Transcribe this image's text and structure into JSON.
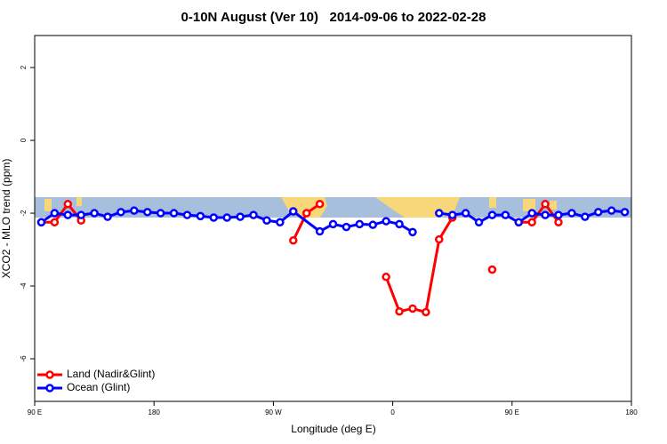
{
  "chart_data": {
    "type": "line",
    "title": "0-10N August (Ver 10)   2014-09-06 to 2022-02-28",
    "x_label": "Longitude (deg E)",
    "y_label": "XCO2 - MLO trend (ppm)",
    "xlim": [
      90,
      540
    ],
    "ylim": [
      -7.17,
      2.88
    ],
    "xticks": [
      {
        "value": 90,
        "label": "90 E"
      },
      180,
      {
        "value": 270,
        "label": "90 W"
      },
      {
        "value": 360,
        "label": "0"
      },
      {
        "value": 450,
        "label": "90 E"
      },
      {
        "value": 540,
        "label": "180"
      }
    ],
    "yticks": [
      -6,
      -4,
      -2,
      0,
      2
    ],
    "legend": "bottom-left",
    "series": [
      {
        "name": "Land (Nadir&Glint)",
        "color": "#ff0000",
        "x": [
          95,
          105,
          115,
          125,
          135,
          285,
          295,
          305,
          315,
          355,
          365,
          375,
          385,
          395,
          405,
          415,
          435,
          445,
          455,
          465,
          475,
          485
        ],
        "values": [
          -2.25,
          -2.25,
          -1.75,
          -2.2,
          null,
          -2.75,
          -2.0,
          -1.75,
          null,
          -3.75,
          -4.7,
          -4.62,
          -4.72,
          -2.72,
          -2.12,
          null,
          -3.55,
          null,
          -2.25,
          -2.25,
          -1.75,
          -2.25
        ]
      },
      {
        "name": "Ocean (Glint)",
        "color": "#0000ff",
        "x": [
          95,
          105,
          115,
          125,
          135,
          145,
          155,
          165,
          175,
          185,
          195,
          205,
          215,
          225,
          235,
          245,
          255,
          265,
          275,
          285,
          305,
          315,
          325,
          335,
          345,
          355,
          365,
          375,
          385,
          395,
          405,
          415,
          425,
          435,
          445,
          455,
          465,
          475,
          485,
          495,
          505,
          515,
          525,
          535
        ],
        "values": [
          -2.25,
          -2.0,
          -2.05,
          -2.05,
          -2.0,
          -2.1,
          -1.97,
          -1.93,
          -1.97,
          -2.0,
          -2.0,
          -2.05,
          -2.08,
          -2.12,
          -2.12,
          -2.1,
          -2.05,
          -2.2,
          -2.25,
          -1.95,
          -2.5,
          -2.3,
          -2.38,
          -2.3,
          -2.32,
          -2.22,
          -2.3,
          -2.52,
          null,
          -2.0,
          -2.05,
          -2.0,
          -2.25,
          -2.05,
          -2.05,
          -2.25,
          -2.0,
          -2.05,
          -2.05,
          -2.0,
          -2.1,
          -1.97,
          -1.93,
          -1.97
        ]
      }
    ]
  }
}
